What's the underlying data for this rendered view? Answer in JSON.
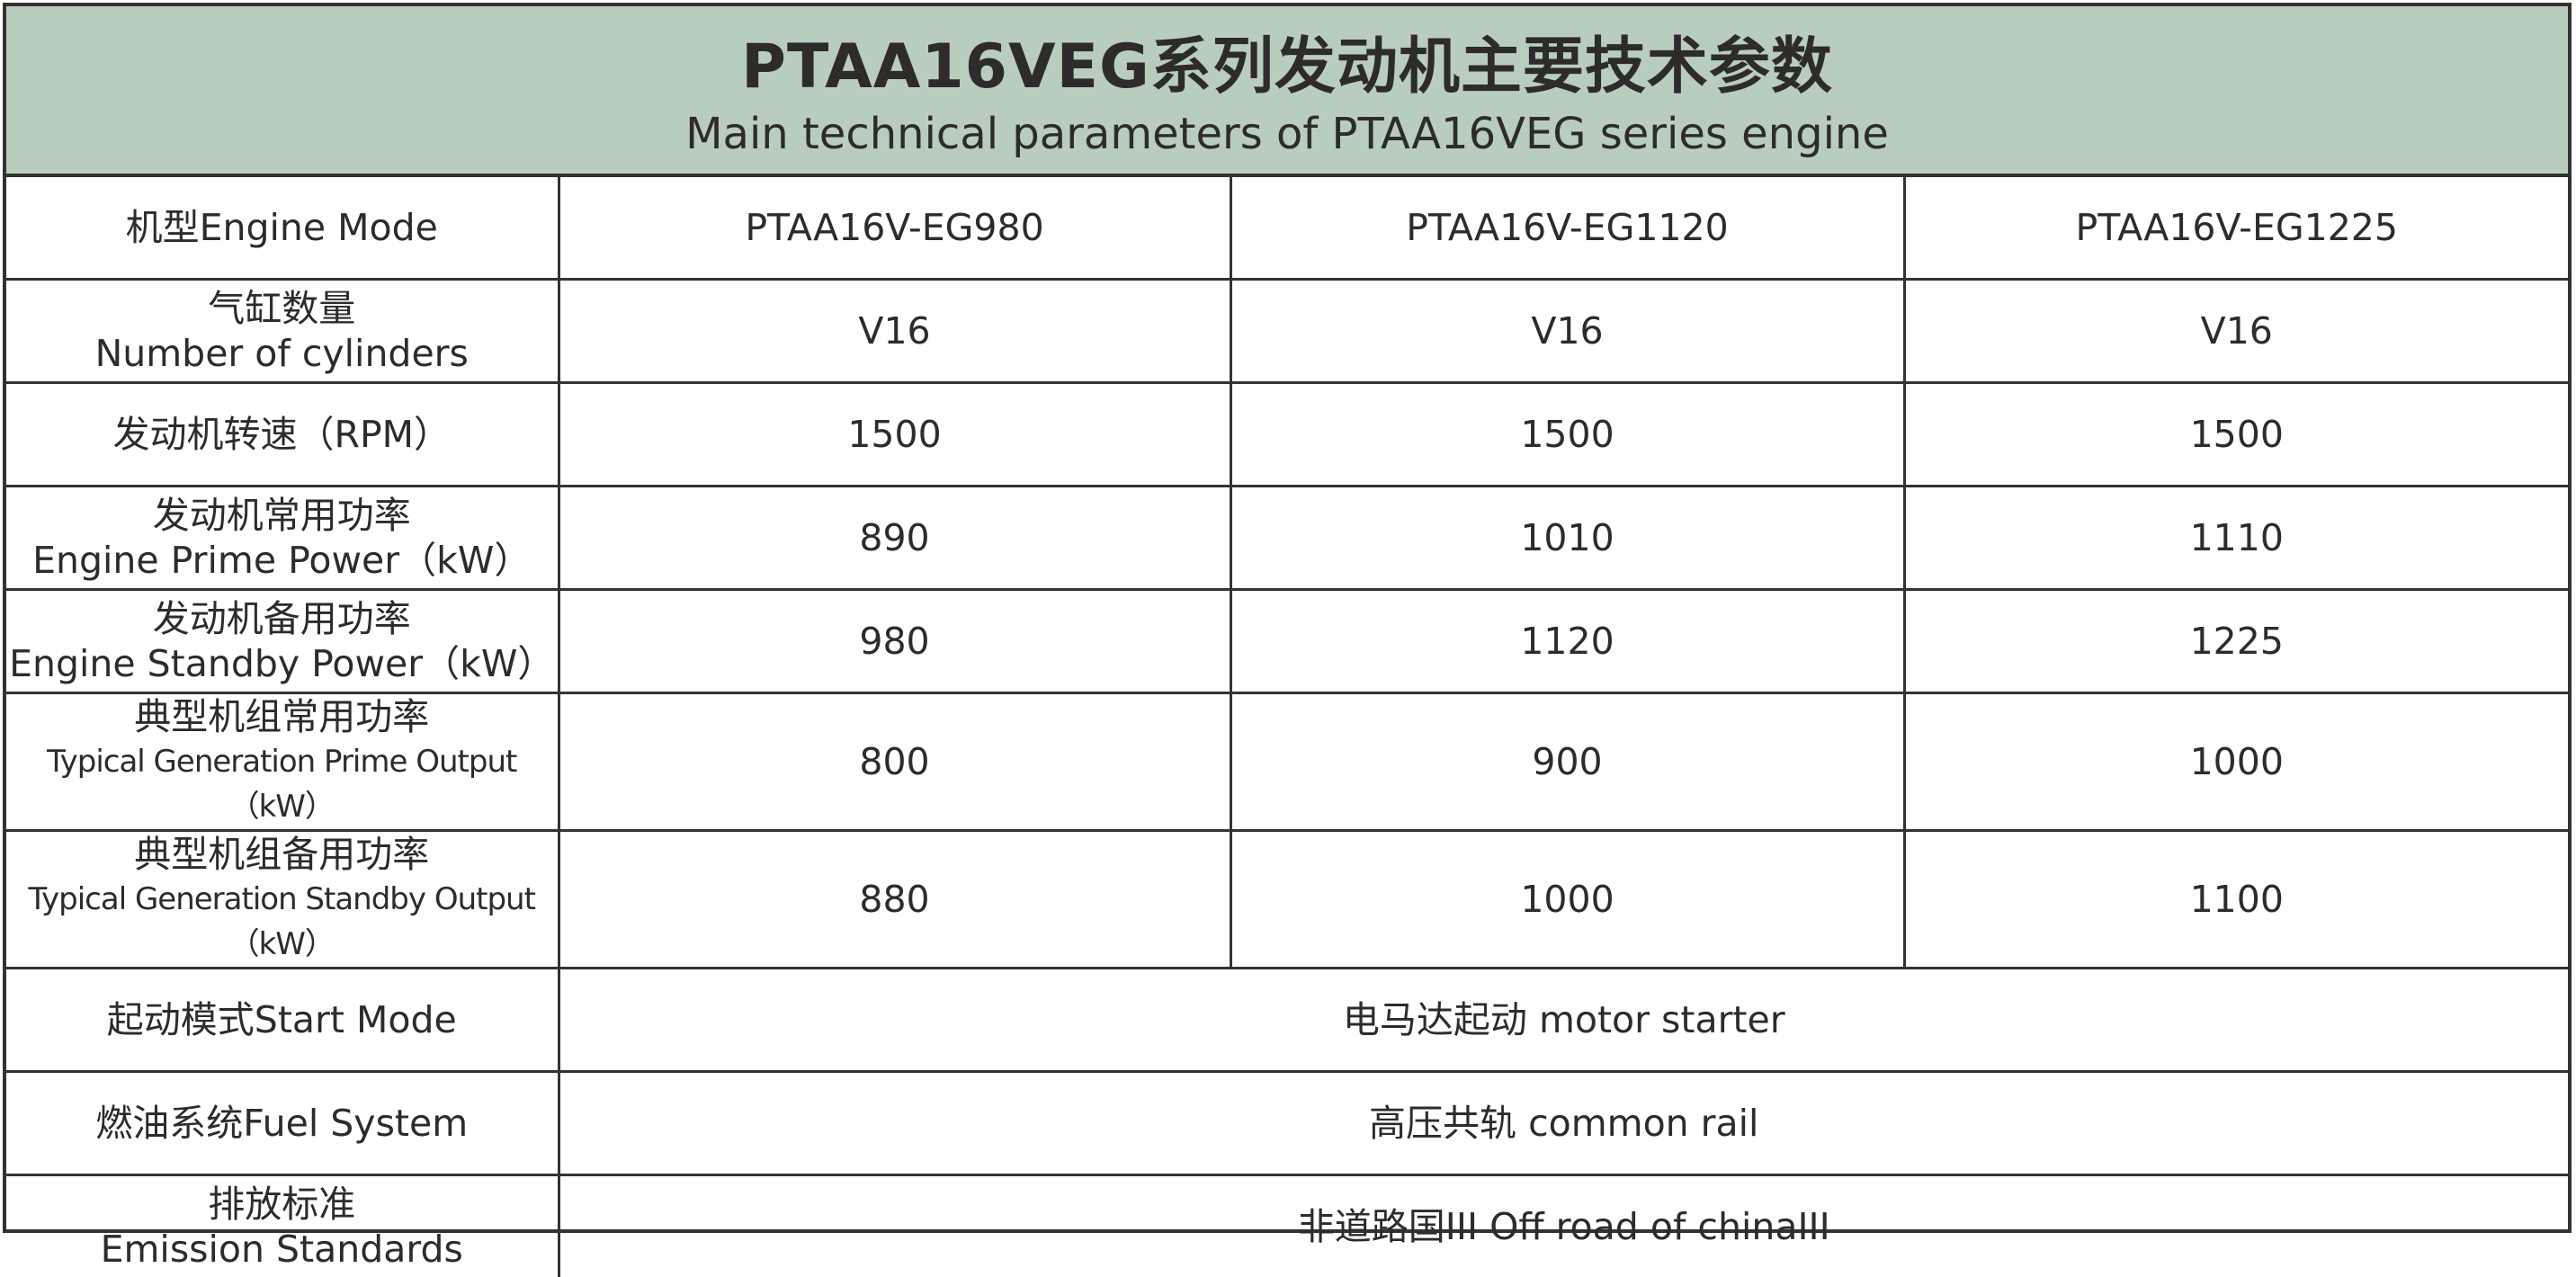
{
  "header": {
    "title": "PTAA16VEG系列发动机主要技术参数",
    "subtitle": "Main technical parameters of PTAA16VEG series engine",
    "background_color": "#b9cdbf"
  },
  "rows": [
    {
      "label_cn": "机型Engine Mode",
      "label_en": "",
      "values": [
        "PTAA16V-EG980",
        "PTAA16V-EG1120",
        "PTAA16V-EG1225"
      ]
    },
    {
      "label_cn": "气缸数量",
      "label_en": "Number of cylinders",
      "values": [
        "V16",
        "V16",
        "V16"
      ]
    },
    {
      "label_cn": "发动机转速（RPM）",
      "label_en": "",
      "values": [
        "1500",
        "1500",
        "1500"
      ]
    },
    {
      "label_cn": "发动机常用功率",
      "label_en": "Engine Prime  Power（kW）",
      "values": [
        "890",
        "1010",
        "1110"
      ]
    },
    {
      "label_cn": "发动机备用功率",
      "label_en": "Engine Standby Power（kW）",
      "values": [
        "980",
        "1120",
        "1225"
      ]
    },
    {
      "label_cn": "典型机组常用功率",
      "label_en": "Typical Generation Prime Output（kW）",
      "values": [
        "800",
        "900",
        "1000"
      ]
    },
    {
      "label_cn": "典型机组备用功率",
      "label_en": "Typical Generation Standby Output（kW）",
      "values": [
        "880",
        "1000",
        "1100"
      ]
    }
  ],
  "merged_rows": [
    {
      "label_cn": "起动模式Start Mode",
      "label_en": "",
      "value": "电马达起动 motor starter"
    },
    {
      "label_cn": "燃油系统Fuel System",
      "label_en": "",
      "value": "高压共轨 common rail"
    },
    {
      "label_cn": "排放标准",
      "label_en": "Emission Standards",
      "value": "非道路国III Off road of chinaIII"
    }
  ]
}
